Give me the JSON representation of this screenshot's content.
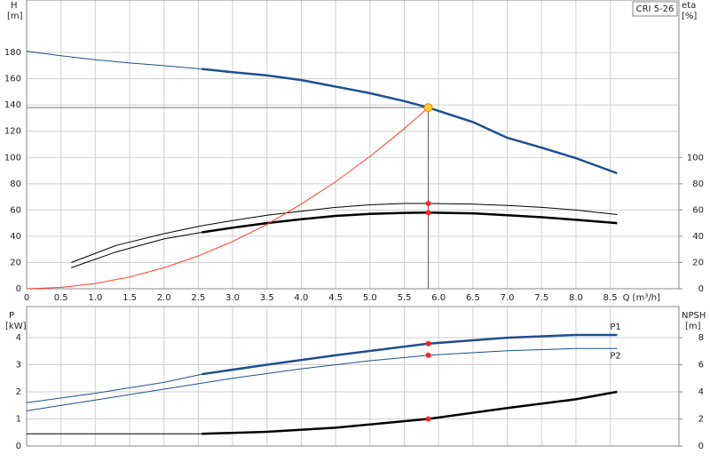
{
  "chart_data": [
    {
      "type": "line",
      "title": "CRI 5-26",
      "ylabel": [
        "H",
        "[m]"
      ],
      "y2label": [
        "eta",
        "[%]"
      ],
      "xlabel": "Q [m³/h]",
      "xlim": [
        0,
        9.5
      ],
      "ylim": [
        0,
        220
      ],
      "y2lim": [
        0,
        220
      ],
      "xticks": [
        0,
        0.5,
        {
          "value": 1,
          "label": "1.0"
        },
        1.5,
        {
          "value": 2,
          "label": "2.0"
        },
        2.5,
        {
          "value": 3,
          "label": "3.0"
        },
        3.5,
        {
          "value": 4,
          "label": "4.0"
        },
        4.5,
        {
          "value": 5,
          "label": "5.0"
        },
        5.5,
        {
          "value": 6,
          "label": "6.0"
        },
        6.5,
        {
          "value": 7,
          "label": "7.0"
        },
        7.5,
        {
          "value": 8,
          "label": "8.0"
        },
        8.5
      ],
      "yticks": [
        0,
        20,
        40,
        60,
        80,
        100,
        120,
        140,
        160,
        180
      ],
      "y2ticks": [
        0,
        20,
        40,
        60,
        80,
        100
      ],
      "grid": true,
      "duty_point": {
        "x": 5.85,
        "y": 138
      },
      "series": [
        {
          "x": [
            0,
            0.5,
            1,
            1.5,
            2,
            2.55
          ],
          "values": [
            181,
            177.5,
            174.5,
            172,
            170,
            167.5
          ],
          "color": "#1f4f8f",
          "width": 1
        },
        {
          "x": [
            2.55,
            3,
            3.5,
            4,
            4.5,
            5,
            5.5,
            5.85,
            6.5,
            7,
            7.5,
            8,
            8.6
          ],
          "values": [
            167.5,
            165,
            162.5,
            159,
            154,
            149,
            143,
            138,
            127,
            115,
            107.5,
            99.5,
            88
          ],
          "color": "#1f4f8f",
          "width": 2.5
        },
        {
          "x": [
            0.65,
            1.3,
            2,
            2.55,
            3,
            3.5,
            4,
            4.5,
            5,
            5.5,
            5.85,
            6.5,
            7,
            7.5,
            8,
            8.6
          ],
          "values": [
            20,
            33,
            42,
            48,
            52,
            56,
            59,
            62,
            64,
            65,
            65,
            64.5,
            63.5,
            62,
            60,
            56.5
          ],
          "color": "#000000",
          "width": 1,
          "axis": "y2"
        },
        {
          "x": [
            0.65,
            1.3,
            2,
            2.55
          ],
          "values": [
            16,
            28,
            38,
            43
          ],
          "color": "#000000",
          "width": 1,
          "axis": "y2"
        },
        {
          "x": [
            2.55,
            3,
            3.5,
            4,
            4.5,
            5,
            5.5,
            5.85,
            6.5,
            7,
            7.5,
            8,
            8.6
          ],
          "values": [
            43,
            46.5,
            50,
            53,
            55.5,
            57,
            57.8,
            58,
            57.5,
            56,
            54.5,
            52.5,
            50
          ],
          "color": "#000000",
          "width": 2.5,
          "axis": "y2"
        },
        {
          "x": [
            0,
            0.5,
            1,
            1.5,
            2,
            2.5,
            3,
            3.5,
            4,
            4.5,
            5,
            5.5,
            5.85
          ],
          "values": [
            0,
            1,
            4,
            9,
            16,
            25,
            36,
            49,
            64.5,
            81.6,
            100.8,
            122,
            138
          ],
          "color": "#ff3b30",
          "width": 1
        }
      ],
      "markers": [
        {
          "x": 5.85,
          "y": 138,
          "color": "#ffcc33"
        },
        {
          "x": 5.85,
          "y": 65,
          "color": "#ff2020",
          "axis": "y2"
        },
        {
          "x": 5.85,
          "y": 58,
          "color": "#ff2020",
          "axis": "y2"
        }
      ]
    },
    {
      "type": "line",
      "ylabel": [
        "P",
        "[kW]"
      ],
      "y2label": [
        "NPSH",
        "[m]"
      ],
      "xlim": [
        0,
        9.5
      ],
      "ylim": [
        0,
        5.15
      ],
      "y2lim": [
        0,
        10.3
      ],
      "xgrid": [
        0,
        0.5,
        1,
        1.5,
        2,
        2.5,
        3,
        3.5,
        4,
        4.5,
        5,
        5.5,
        6,
        6.5,
        7,
        7.5,
        8,
        8.5
      ],
      "yticks": [
        0,
        1,
        2,
        3,
        4
      ],
      "y2ticks": [
        0,
        2,
        4,
        6,
        8
      ],
      "grid": true,
      "series": [
        {
          "x": [
            0,
            1,
            2,
            2.55
          ],
          "values": [
            1.6,
            1.95,
            2.35,
            2.65
          ],
          "color": "#1f4f8f",
          "width": 1
        },
        {
          "name": "P1",
          "x": [
            2.55,
            3.5,
            4.5,
            5.85,
            7,
            8,
            8.6
          ],
          "values": [
            2.65,
            3.0,
            3.35,
            3.78,
            4.0,
            4.1,
            4.1
          ],
          "color": "#1f4f8f",
          "width": 2.5
        },
        {
          "name": "P2",
          "x": [
            0,
            1,
            2,
            3,
            4,
            5,
            5.85,
            7,
            8,
            8.6
          ],
          "values": [
            1.3,
            1.7,
            2.1,
            2.5,
            2.85,
            3.15,
            3.35,
            3.52,
            3.6,
            3.6
          ],
          "color": "#1f4f8f",
          "width": 1
        },
        {
          "x": [
            0,
            2.55
          ],
          "values": [
            0.9,
            0.9
          ],
          "color": "#000000",
          "width": 1,
          "axis": "y2"
        },
        {
          "x": [
            2.55,
            3.5,
            4.5,
            5.85,
            7,
            8,
            8.6
          ],
          "values": [
            0.9,
            1.05,
            1.35,
            2.0,
            2.8,
            3.45,
            4.0
          ],
          "color": "#000000",
          "width": 2.5,
          "axis": "y2"
        }
      ],
      "markers": [
        {
          "x": 5.85,
          "y": 3.78,
          "color": "#ff2020"
        },
        {
          "x": 5.85,
          "y": 3.35,
          "color": "#ff2020"
        },
        {
          "x": 5.85,
          "y": 2.0,
          "color": "#ff2020",
          "axis": "y2"
        }
      ]
    }
  ]
}
